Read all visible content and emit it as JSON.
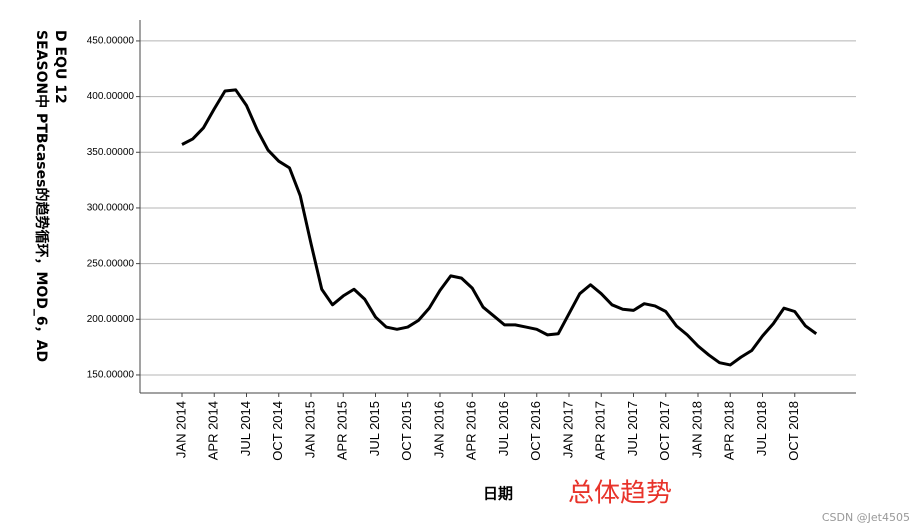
{
  "chart_data": {
    "type": "line",
    "y_title_lines": [
      "D EQU 12",
      "SEASON中 PTBcases的趋势循环，MOD_6，AD"
    ],
    "x_title": "日期",
    "annotation": "总体趋势",
    "categories": [
      "JAN 2014",
      null,
      null,
      "APR 2014",
      null,
      null,
      "JUL 2014",
      null,
      null,
      "OCT 2014",
      null,
      null,
      "JAN 2015",
      null,
      null,
      "APR 2015",
      null,
      null,
      "JUL 2015",
      null,
      null,
      "OCT 2015",
      null,
      null,
      "JAN 2016",
      null,
      null,
      "APR 2016",
      null,
      null,
      "JUL 2016",
      null,
      null,
      "OCT 2016",
      null,
      null,
      "JAN 2017",
      null,
      null,
      "APR 2017",
      null,
      null,
      "JUL 2017",
      null,
      null,
      "OCT 2017",
      null,
      null,
      "JAN 2018",
      null,
      null,
      "APR 2018",
      null,
      null,
      "JUL 2018",
      null,
      null,
      "OCT 2018",
      null,
      null
    ],
    "series": [
      {
        "color": "#000000",
        "values": [
          357,
          362,
          372,
          389,
          405,
          406,
          392,
          370,
          352,
          342,
          336,
          311,
          268,
          227,
          213,
          221,
          227,
          218,
          202,
          193,
          191,
          193,
          199,
          210,
          226,
          239,
          237,
          228,
          211,
          203,
          195,
          195,
          193,
          191,
          186,
          187,
          205,
          223,
          231,
          223,
          213,
          209,
          208,
          214,
          212,
          207,
          194,
          186,
          176,
          168,
          161,
          159,
          166,
          172,
          185,
          196,
          210,
          207,
          194,
          187
        ]
      }
    ],
    "ylim": [
      133.8,
      468.8
    ],
    "yticks": [
      {
        "value": 150,
        "label": "150.00000"
      },
      {
        "value": 200,
        "label": "200.00000"
      },
      {
        "value": 250,
        "label": "250.00000"
      },
      {
        "value": 300,
        "label": "300.00000"
      },
      {
        "value": 350,
        "label": "350.00000"
      },
      {
        "value": 400,
        "label": "400.00000"
      },
      {
        "value": 450,
        "label": "450.00000"
      }
    ],
    "grid": true
  },
  "watermark": "CSDN @Jet4505"
}
